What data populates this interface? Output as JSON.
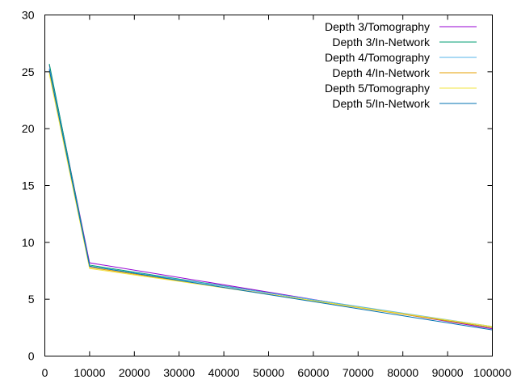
{
  "chart_data": {
    "type": "line",
    "title": "",
    "xlabel": "",
    "ylabel": "",
    "xlim": [
      0,
      100000
    ],
    "ylim": [
      0,
      30
    ],
    "grid": false,
    "legend_position": "top-right",
    "x_ticks": [
      "0",
      "10000",
      "20000",
      "30000",
      "40000",
      "50000",
      "60000",
      "70000",
      "80000",
      "90000",
      "100000"
    ],
    "y_ticks": [
      "0",
      "5",
      "10",
      "15",
      "20",
      "25",
      "30"
    ],
    "x": [
      1000,
      10000,
      100000
    ],
    "series": [
      {
        "name": "Depth 3/Tomography",
        "color": "#9400d3",
        "values": [
          25.6,
          8.2,
          2.4
        ]
      },
      {
        "name": "Depth 3/In-Network",
        "color": "#009e73",
        "values": [
          25.7,
          8.0,
          2.5
        ]
      },
      {
        "name": "Depth 4/Tomography",
        "color": "#56b4e9",
        "values": [
          25.3,
          7.9,
          2.6
        ]
      },
      {
        "name": "Depth 4/In-Network",
        "color": "#e69f00",
        "values": [
          25.0,
          7.8,
          2.5
        ]
      },
      {
        "name": "Depth 5/Tomography",
        "color": "#f0e442",
        "values": [
          24.8,
          7.7,
          2.6
        ]
      },
      {
        "name": "Depth 5/In-Network",
        "color": "#0072b2",
        "values": [
          25.2,
          7.9,
          2.3
        ]
      }
    ]
  }
}
